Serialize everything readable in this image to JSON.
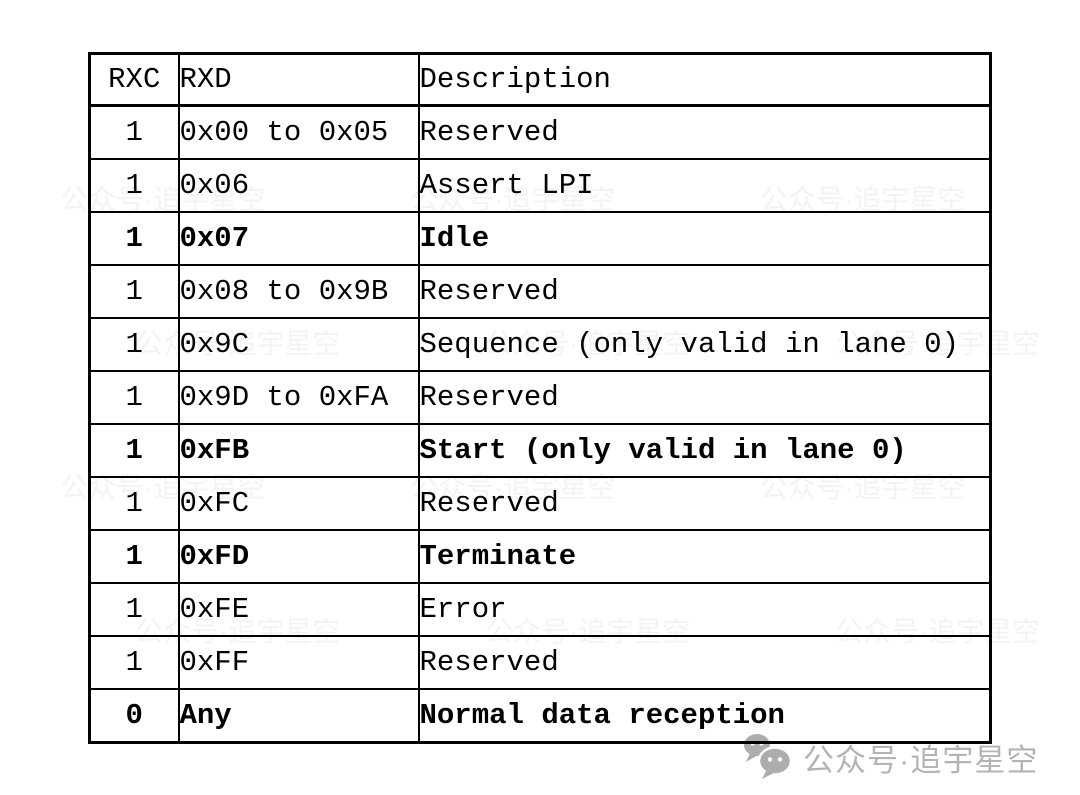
{
  "page": {
    "background": "#ffffff",
    "text_color": "#000000",
    "border_color": "#000000"
  },
  "table": {
    "headers": [
      "RXC",
      "RXD",
      "Description"
    ],
    "rows": [
      {
        "rxc": "1",
        "rxd": "0x00 to 0x05",
        "description": "Reserved",
        "bold": false
      },
      {
        "rxc": "1",
        "rxd": "0x06",
        "description": "Assert LPI",
        "bold": false
      },
      {
        "rxc": "1",
        "rxd": "0x07",
        "description": "Idle",
        "bold": true
      },
      {
        "rxc": "1",
        "rxd": "0x08 to 0x9B",
        "description": "Reserved",
        "bold": false
      },
      {
        "rxc": "1",
        "rxd": "0x9C",
        "description": "Sequence (only valid in lane 0)",
        "bold": false
      },
      {
        "rxc": "1",
        "rxd": "0x9D to 0xFA",
        "description": "Reserved",
        "bold": false
      },
      {
        "rxc": "1",
        "rxd": "0xFB",
        "description": "Start (only valid in lane 0)",
        "bold": true
      },
      {
        "rxc": "1",
        "rxd": "0xFC",
        "description": "Reserved",
        "bold": false
      },
      {
        "rxc": "1",
        "rxd": "0xFD",
        "description": "Terminate",
        "bold": true
      },
      {
        "rxc": "1",
        "rxd": "0xFE",
        "description": "Error",
        "bold": false
      },
      {
        "rxc": "1",
        "rxd": "0xFF",
        "description": "Reserved",
        "bold": false
      },
      {
        "rxc": "0",
        "rxd": "Any",
        "description": "Normal data reception",
        "bold": true
      }
    ]
  },
  "watermark": {
    "icon": "wechat-icon",
    "text": "公众号·追宇星空",
    "color": "#b4b4b4"
  }
}
